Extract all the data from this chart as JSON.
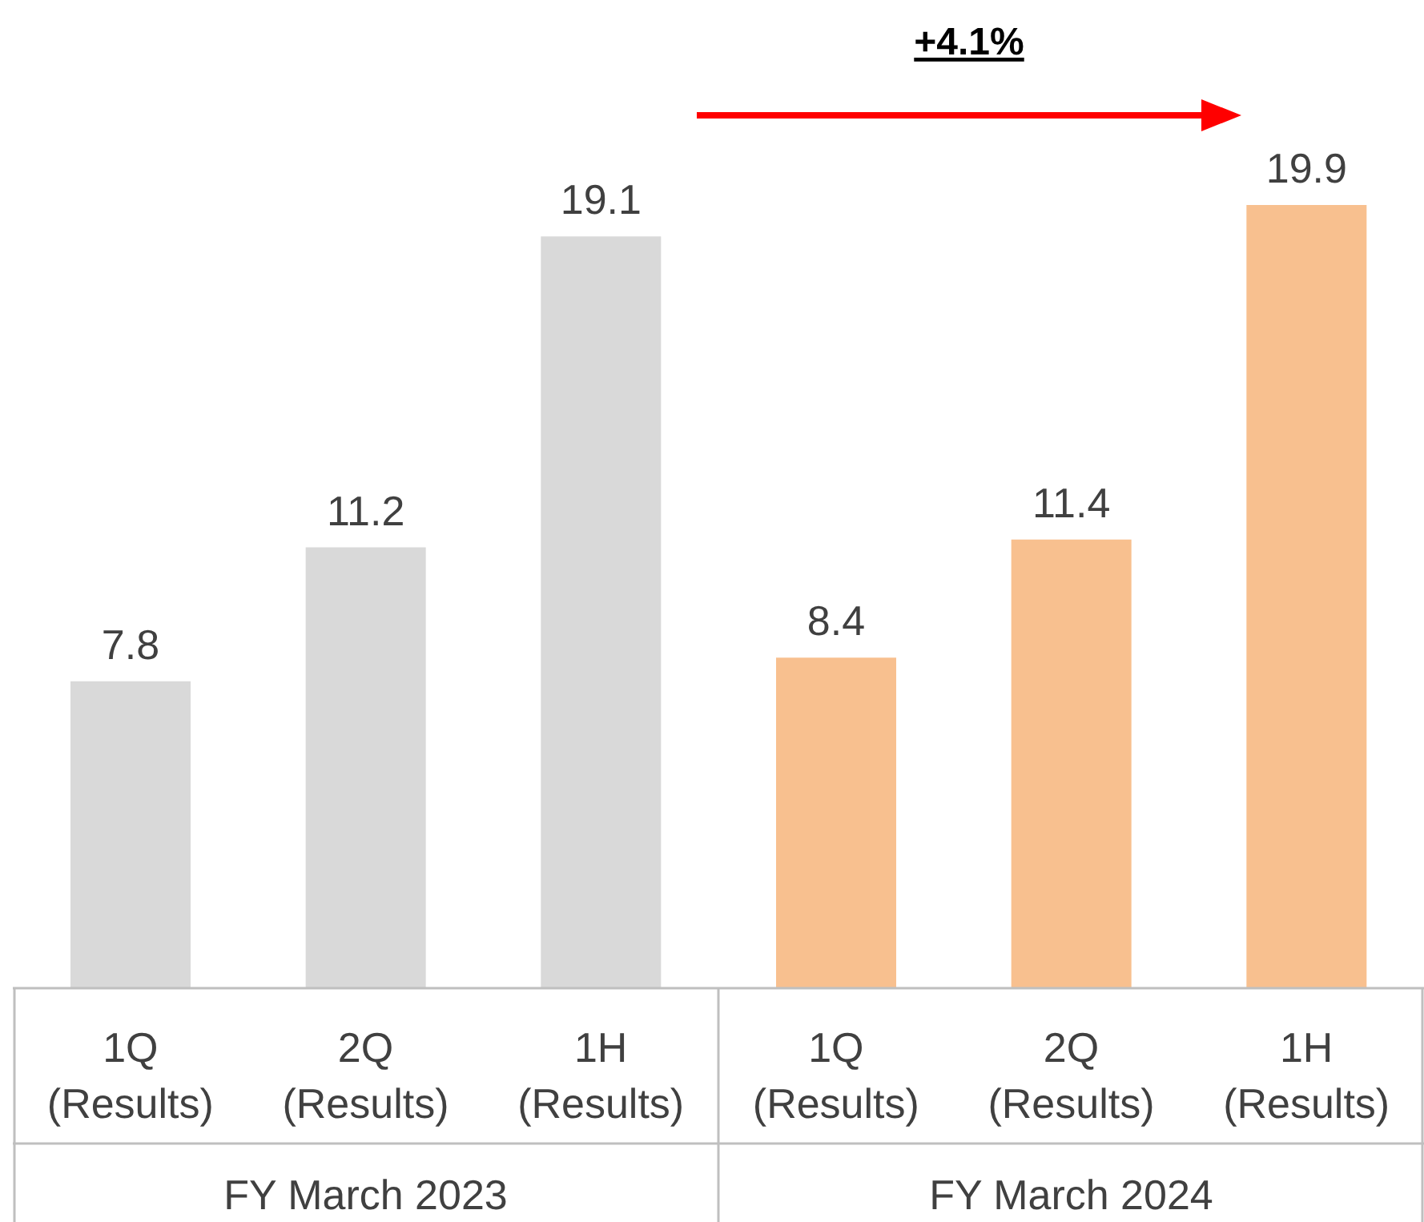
{
  "chart_data": {
    "type": "bar",
    "categories": [
      "1Q (Results)",
      "2Q (Results)",
      "1H (Results)",
      "1Q (Results)",
      "2Q (Results)",
      "1H (Results)"
    ],
    "values": [
      7.8,
      11.2,
      19.1,
      8.4,
      11.4,
      19.9
    ],
    "colors": [
      "#d9d9d9",
      "#d9d9d9",
      "#d9d9d9",
      "#f8c08f",
      "#f8c08f",
      "#f8c08f"
    ],
    "data_labels": true,
    "annotations": [
      "+4.1%",
      "FY March 2023",
      "FY March 2024"
    ]
  }
}
